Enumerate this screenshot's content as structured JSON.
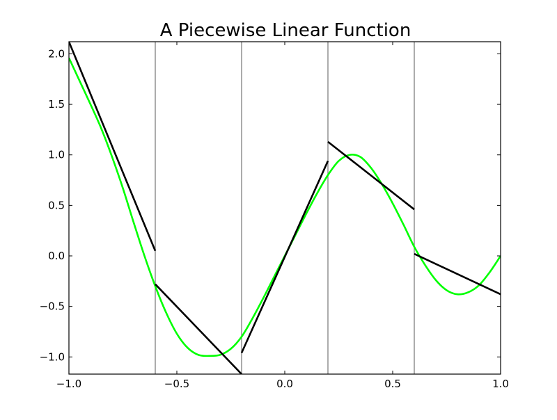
{
  "chart_data": {
    "type": "line",
    "title": "A Piecewise Linear Function",
    "xlabel": "",
    "ylabel": "",
    "xlim": [
      -1.0,
      1.0
    ],
    "ylim": [
      -1.17,
      2.12
    ],
    "x_ticks": [
      -1.0,
      -0.5,
      0.0,
      0.5,
      1.0
    ],
    "x_tick_labels": [
      "−1.0",
      "−0.5",
      "0.0",
      "0.5",
      "1.0"
    ],
    "y_ticks": [
      -1.0,
      -0.5,
      0.0,
      0.5,
      1.0,
      1.5,
      2.0
    ],
    "y_tick_labels": [
      "−1.0",
      "−0.5",
      "0.0",
      "0.5",
      "1.0",
      "1.5",
      "2.0"
    ],
    "grid": false,
    "legend": "none",
    "breakpoints": [
      -0.6,
      -0.2,
      0.2,
      0.6
    ],
    "colors": {
      "curve": "#00ff00",
      "segments": "#000000",
      "breakpoints": "#808080"
    },
    "series": [
      {
        "style": "smooth curve",
        "x": [
          -1.0,
          -0.95,
          -0.9,
          -0.85,
          -0.8,
          -0.75,
          -0.7,
          -0.65,
          -0.6,
          -0.55,
          -0.5,
          -0.45,
          -0.4,
          -0.35,
          -0.3,
          -0.25,
          -0.2,
          -0.15,
          -0.1,
          -0.05,
          0.0,
          0.05,
          0.1,
          0.15,
          0.2,
          0.25,
          0.3,
          0.35,
          0.4,
          0.45,
          0.5,
          0.55,
          0.6,
          0.65,
          0.7,
          0.75,
          0.8,
          0.85,
          0.9,
          0.95,
          1.0
        ],
        "y": [
          1.96,
          1.73,
          1.5,
          1.26,
          0.98,
          0.67,
          0.33,
          0.0,
          -0.3,
          -0.56,
          -0.77,
          -0.91,
          -0.98,
          -0.99,
          -0.98,
          -0.92,
          -0.8,
          -0.62,
          -0.42,
          -0.21,
          0.0,
          0.21,
          0.42,
          0.62,
          0.8,
          0.94,
          1.0,
          0.98,
          0.87,
          0.71,
          0.52,
          0.31,
          0.09,
          -0.09,
          -0.24,
          -0.34,
          -0.38,
          -0.36,
          -0.29,
          -0.16,
          0.0
        ]
      },
      {
        "style": "piecewise linear",
        "segments": [
          {
            "x": [
              -1.0,
              -0.6
            ],
            "y": [
              2.12,
              0.05
            ]
          },
          {
            "x": [
              -0.6,
              -0.2
            ],
            "y": [
              -0.28,
              -1.17
            ]
          },
          {
            "x": [
              -0.2,
              0.2
            ],
            "y": [
              -0.96,
              0.94
            ]
          },
          {
            "x": [
              0.2,
              0.6
            ],
            "y": [
              1.13,
              0.46
            ]
          },
          {
            "x": [
              0.6,
              1.0
            ],
            "y": [
              0.02,
              -0.38
            ]
          }
        ]
      }
    ]
  }
}
